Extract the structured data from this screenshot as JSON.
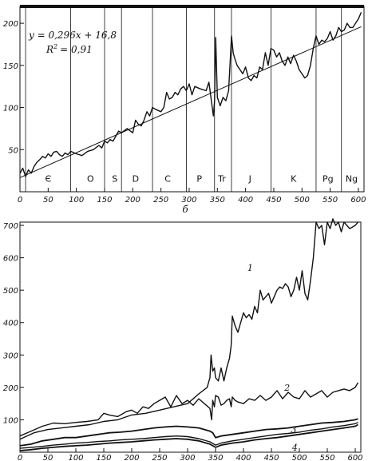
{
  "panel_label": "б",
  "chart_data": [
    {
      "type": "line",
      "title": "",
      "xlabel": "",
      "ylabel": "",
      "xlim": [
        0,
        610
      ],
      "ylim": [
        0,
        220
      ],
      "x_ticks": [
        0,
        50,
        100,
        150,
        200,
        250,
        300,
        350,
        400,
        450,
        500,
        550,
        600
      ],
      "y_ticks": [
        50,
        100,
        150,
        200
      ],
      "grid": false,
      "regression": {
        "equation": "y = 0,296x + 16,8",
        "r2_label": "R",
        "r2_value_text": "= 0,91",
        "slope": 0.296,
        "intercept": 16.8
      },
      "period_boundaries": [
        10,
        90,
        150,
        180,
        235,
        295,
        345,
        375,
        445,
        525,
        570
      ],
      "periods": [
        {
          "label": "Є",
          "x": 50
        },
        {
          "label": "O",
          "x": 125
        },
        {
          "label": "S",
          "x": 168
        },
        {
          "label": "D",
          "x": 205
        },
        {
          "label": "C",
          "x": 262
        },
        {
          "label": "P",
          "x": 318
        },
        {
          "label": "Tr",
          "x": 358
        },
        {
          "label": "J",
          "x": 408
        },
        {
          "label": "K",
          "x": 485
        },
        {
          "label": "Pg",
          "x": 546
        },
        {
          "label": "Ng",
          "x": 588
        }
      ],
      "series": [
        {
          "x": [
            0,
            5,
            10,
            15,
            20,
            25,
            30,
            35,
            40,
            45,
            50,
            55,
            60,
            65,
            70,
            75,
            80,
            85,
            90,
            100,
            110,
            120,
            130,
            140,
            145,
            150,
            155,
            160,
            165,
            170,
            175,
            180,
            190,
            200,
            205,
            210,
            215,
            220,
            225,
            230,
            235,
            240,
            250,
            255,
            260,
            265,
            270,
            275,
            280,
            285,
            290,
            295,
            300,
            305,
            310,
            320,
            330,
            335,
            340,
            343,
            345,
            347,
            350,
            355,
            360,
            365,
            370,
            372,
            375,
            378,
            380,
            385,
            390,
            395,
            400,
            405,
            410,
            415,
            420,
            425,
            430,
            435,
            440,
            445,
            450,
            455,
            460,
            465,
            470,
            475,
            480,
            485,
            490,
            495,
            500,
            505,
            510,
            515,
            520,
            525,
            530,
            535,
            540,
            545,
            550,
            555,
            560,
            565,
            570,
            575,
            580,
            585,
            590,
            595,
            600,
            605
          ],
          "y": [
            22,
            28,
            18,
            26,
            22,
            30,
            35,
            38,
            42,
            40,
            45,
            42,
            47,
            48,
            44,
            42,
            46,
            44,
            48,
            45,
            43,
            48,
            50,
            55,
            52,
            60,
            58,
            62,
            60,
            66,
            72,
            70,
            75,
            70,
            85,
            80,
            78,
            85,
            95,
            90,
            100,
            98,
            95,
            100,
            118,
            110,
            112,
            118,
            115,
            122,
            125,
            120,
            128,
            115,
            125,
            122,
            120,
            130,
            105,
            90,
            108,
            183,
            112,
            102,
            112,
            108,
            120,
            145,
            185,
            165,
            160,
            150,
            145,
            140,
            148,
            135,
            132,
            138,
            135,
            148,
            145,
            165,
            150,
            170,
            168,
            160,
            165,
            155,
            150,
            160,
            152,
            162,
            155,
            145,
            140,
            135,
            138,
            150,
            170,
            185,
            175,
            180,
            178,
            182,
            190,
            180,
            185,
            195,
            190,
            192,
            200,
            195,
            195,
            200,
            205,
            213
          ]
        }
      ]
    },
    {
      "type": "line",
      "title": "",
      "xlabel": "",
      "ylabel": "",
      "xlim": [
        0,
        610
      ],
      "ylim": [
        0,
        710
      ],
      "x_ticks": [
        0,
        50,
        100,
        150,
        200,
        250,
        300,
        350,
        400,
        450,
        500,
        550,
        600
      ],
      "y_ticks": [
        100,
        200,
        300,
        400,
        500,
        600,
        700
      ],
      "grid": false,
      "series": [
        {
          "name": "1",
          "label_pos": [
            412,
            570
          ],
          "x": [
            0,
            25,
            50,
            75,
            100,
            125,
            150,
            175,
            200,
            225,
            250,
            275,
            300,
            320,
            335,
            340,
            342,
            345,
            348,
            350,
            355,
            360,
            365,
            370,
            375,
            378,
            380,
            385,
            390,
            400,
            405,
            410,
            415,
            420,
            425,
            430,
            435,
            440,
            445,
            450,
            455,
            460,
            465,
            470,
            475,
            480,
            485,
            490,
            495,
            500,
            505,
            510,
            515,
            520,
            525,
            530,
            535,
            540,
            545,
            550,
            555,
            560,
            565,
            570,
            575,
            580,
            590,
            600,
            605
          ],
          "y": [
            40,
            60,
            70,
            75,
            80,
            85,
            95,
            100,
            115,
            120,
            130,
            140,
            150,
            180,
            200,
            230,
            300,
            250,
            260,
            230,
            220,
            260,
            220,
            260,
            290,
            330,
            420,
            390,
            370,
            430,
            415,
            425,
            410,
            450,
            430,
            500,
            470,
            480,
            490,
            460,
            480,
            500,
            510,
            505,
            520,
            510,
            480,
            500,
            540,
            500,
            560,
            490,
            470,
            530,
            600,
            710,
            690,
            700,
            640,
            710,
            690,
            720,
            700,
            710,
            680,
            710,
            690,
            700,
            710
          ]
        },
        {
          "name": "2",
          "label_pos": [
            478,
            200
          ],
          "x": [
            0,
            20,
            40,
            60,
            80,
            100,
            120,
            140,
            150,
            160,
            175,
            190,
            200,
            210,
            220,
            230,
            240,
            250,
            260,
            270,
            280,
            290,
            300,
            310,
            320,
            330,
            340,
            343,
            345,
            348,
            350,
            355,
            360,
            365,
            370,
            375,
            378,
            380,
            385,
            390,
            400,
            410,
            420,
            430,
            440,
            450,
            460,
            470,
            480,
            490,
            500,
            510,
            520,
            530,
            540,
            550,
            560,
            570,
            580,
            590,
            600,
            605
          ],
          "y": [
            50,
            65,
            80,
            90,
            88,
            92,
            95,
            100,
            120,
            115,
            110,
            125,
            130,
            120,
            140,
            135,
            150,
            160,
            170,
            140,
            175,
            150,
            160,
            145,
            165,
            150,
            135,
            100,
            160,
            140,
            175,
            170,
            145,
            150,
            160,
            165,
            140,
            170,
            160,
            155,
            150,
            165,
            160,
            175,
            160,
            170,
            190,
            165,
            185,
            170,
            165,
            190,
            170,
            180,
            190,
            170,
            185,
            190,
            195,
            190,
            200,
            215
          ]
        },
        {
          "name": "3",
          "label_pos": [
            490,
            70
          ],
          "x": [
            0,
            20,
            40,
            60,
            80,
            100,
            120,
            140,
            160,
            180,
            200,
            220,
            240,
            260,
            280,
            300,
            320,
            340,
            345,
            350,
            360,
            380,
            400,
            420,
            440,
            460,
            480,
            500,
            520,
            540,
            560,
            580,
            600,
            605
          ],
          "y": [
            20,
            25,
            35,
            40,
            45,
            45,
            50,
            55,
            60,
            62,
            65,
            70,
            75,
            78,
            80,
            78,
            75,
            65,
            60,
            45,
            50,
            55,
            60,
            65,
            70,
            72,
            75,
            80,
            85,
            90,
            92,
            95,
            100,
            103
          ]
        },
        {
          "name": "4",
          "label_pos": [
            492,
            15
          ],
          "x": [
            0,
            20,
            40,
            60,
            80,
            100,
            120,
            140,
            160,
            180,
            200,
            220,
            240,
            260,
            280,
            300,
            320,
            340,
            345,
            350,
            360,
            380,
            400,
            420,
            440,
            460,
            480,
            500,
            520,
            540,
            560,
            580,
            600,
            605
          ],
          "y": [
            5,
            8,
            12,
            15,
            18,
            20,
            22,
            25,
            28,
            30,
            32,
            35,
            38,
            40,
            42,
            40,
            35,
            25,
            20,
            15,
            22,
            28,
            32,
            38,
            42,
            45,
            50,
            55,
            60,
            65,
            70,
            75,
            80,
            85
          ]
        },
        {
          "x": [
            0,
            20,
            40,
            60,
            80,
            100,
            120,
            140,
            160,
            180,
            200,
            220,
            240,
            260,
            280,
            300,
            320,
            340,
            345,
            350,
            360,
            380,
            400,
            420,
            440,
            460,
            480,
            500,
            520,
            540,
            560,
            580,
            600,
            605
          ],
          "y": [
            12,
            15,
            18,
            22,
            25,
            28,
            30,
            33,
            35,
            38,
            40,
            42,
            45,
            48,
            50,
            48,
            42,
            32,
            27,
            22,
            28,
            35,
            40,
            45,
            50,
            55,
            58,
            62,
            68,
            72,
            78,
            82,
            88,
            92
          ]
        }
      ]
    }
  ]
}
